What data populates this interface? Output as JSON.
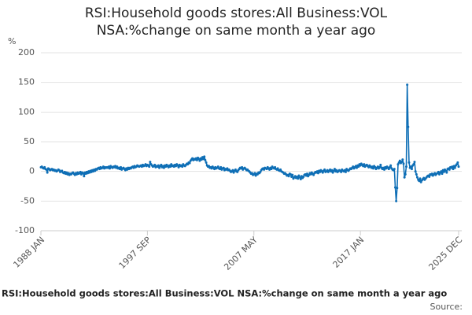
{
  "chart_data": {
    "type": "line",
    "title": "RSI:Household goods stores:All Business:VOL NSA:%change on same month a year ago",
    "y_label": "%",
    "footer": "RSI:Household goods stores:All Business:VOL NSA:%change on same month a year ago",
    "source": "Source:",
    "ylim": [
      -100,
      200
    ],
    "yticks": [
      -100,
      -50,
      0,
      50,
      100,
      150,
      200
    ],
    "grid": true,
    "categories": [
      "1988 JAN",
      null,
      null,
      null,
      null,
      null,
      null,
      null,
      null,
      null,
      null,
      null,
      null,
      null,
      null,
      null,
      null,
      null,
      null,
      null,
      null,
      null,
      null,
      null,
      null,
      null,
      null,
      null,
      null,
      null,
      null,
      null,
      null,
      null,
      null,
      null,
      null,
      null,
      null,
      null,
      null,
      null,
      null,
      null,
      null,
      null,
      null,
      null,
      null,
      null,
      null,
      null,
      null,
      null,
      null,
      null,
      null,
      null,
      null,
      null,
      null,
      null,
      null,
      null,
      null,
      null,
      null,
      null,
      null,
      null,
      null,
      null,
      null,
      null,
      null,
      null,
      null,
      null,
      null,
      null,
      null,
      null,
      null,
      null,
      null,
      null,
      null,
      null,
      null,
      null,
      null,
      null,
      null,
      null,
      null,
      null,
      null,
      null,
      null,
      null,
      null,
      null,
      null,
      null,
      null,
      null,
      null,
      null,
      null,
      null,
      null,
      null,
      null,
      null,
      null,
      null,
      "1997 SEP",
      null,
      null,
      null,
      null,
      null,
      null,
      null,
      null,
      null,
      null,
      null,
      null,
      null,
      null,
      null,
      null,
      null,
      null,
      null,
      null,
      null,
      null,
      null,
      null,
      null,
      null,
      null,
      null,
      null,
      null,
      null,
      null,
      null,
      null,
      null,
      null,
      null,
      null,
      null,
      null,
      null,
      null,
      null,
      null,
      null,
      null,
      null,
      null,
      null,
      null,
      null,
      null,
      null,
      null,
      null,
      null,
      null,
      null,
      null,
      null,
      null,
      null,
      null,
      null,
      null,
      null,
      null,
      null,
      null,
      null,
      null,
      null,
      null,
      null,
      null,
      null,
      null,
      null,
      null,
      null,
      null,
      null,
      null,
      null,
      null,
      null,
      null,
      null,
      null,
      null,
      null,
      null,
      null,
      null,
      null,
      null,
      null,
      null,
      null,
      null,
      null,
      null,
      null,
      null,
      null,
      null,
      null,
      null,
      null,
      null,
      null,
      null,
      null,
      null,
      null,
      "2007 MAY",
      null,
      null,
      null,
      null,
      null,
      null,
      null,
      null,
      null,
      null,
      null,
      null,
      null,
      null,
      null,
      null,
      null,
      null,
      null,
      null,
      null,
      null,
      null,
      null,
      null,
      null,
      null,
      null,
      null,
      null,
      null,
      null,
      null,
      null,
      null,
      null,
      null,
      null,
      null,
      null,
      null,
      null,
      null,
      null,
      null,
      null,
      null,
      null,
      null,
      null,
      null,
      null,
      null,
      null,
      null,
      null,
      null,
      null,
      null,
      null,
      null,
      null,
      null,
      null,
      null,
      null,
      null,
      null,
      null,
      null,
      null,
      null,
      null,
      null,
      null,
      null,
      null,
      null,
      null,
      null,
      null,
      null,
      null,
      null,
      null,
      null,
      null,
      null,
      null,
      null,
      null,
      null,
      null,
      null,
      null,
      null,
      null,
      null,
      null,
      null,
      null,
      null,
      null,
      null,
      null,
      null,
      null,
      null,
      null,
      null,
      null,
      null,
      null,
      null,
      null,
      "2017 JAN",
      null,
      null,
      null,
      null,
      null,
      null,
      null,
      null,
      null,
      null,
      null,
      null,
      null,
      null,
      null,
      null,
      null,
      null,
      null,
      null,
      null,
      null,
      null,
      null,
      null,
      null,
      null,
      null,
      null,
      null,
      null,
      null,
      null,
      null,
      null,
      null,
      null,
      null,
      null,
      null,
      null,
      null,
      null,
      null,
      null,
      null,
      null,
      null,
      null,
      null,
      null,
      null,
      null,
      null,
      null,
      null,
      null,
      null,
      null,
      null,
      null,
      null,
      null,
      null,
      null,
      null,
      null,
      null,
      null,
      null,
      null,
      null,
      null,
      null,
      null,
      null,
      null,
      null,
      null,
      null,
      null,
      null,
      null,
      null,
      null,
      null,
      null,
      null,
      null,
      null,
      null,
      null,
      null,
      null,
      null,
      null,
      null,
      null,
      null,
      null,
      null,
      null,
      null,
      null,
      null,
      null,
      "2025 DEC"
    ],
    "series": [
      {
        "name": "RSI:Household goods stores:All Business:VOL NSA:%change on same month a year ago",
        "color": "#0f6fb6",
        "values": [
          7,
          8,
          6,
          5,
          7,
          4,
          3,
          -2,
          5,
          4,
          2,
          3,
          4,
          2,
          3,
          1,
          2,
          0,
          1,
          3,
          2,
          -1,
          0,
          1,
          -2,
          -3,
          -1,
          -4,
          -2,
          -5,
          -3,
          -6,
          -4,
          -5,
          -3,
          -2,
          -4,
          -6,
          -3,
          -5,
          -2,
          -4,
          -3,
          -1,
          -5,
          -2,
          -3,
          -8,
          -2,
          -4,
          -1,
          -3,
          0,
          -2,
          1,
          -1,
          2,
          0,
          3,
          1,
          4,
          3,
          5,
          6,
          4,
          7,
          5,
          6,
          8,
          5,
          7,
          6,
          7,
          6,
          8,
          5,
          9,
          7,
          6,
          8,
          7,
          9,
          6,
          8,
          5,
          6,
          4,
          7,
          3,
          5,
          6,
          4,
          2,
          5,
          3,
          6,
          4,
          6,
          5,
          7,
          8,
          6,
          9,
          7,
          8,
          10,
          9,
          8,
          9,
          10,
          8,
          11,
          9,
          10,
          12,
          9,
          11,
          10,
          8,
          16,
          12,
          10,
          8,
          9,
          11,
          7,
          9,
          8,
          10,
          6,
          9,
          11,
          7,
          9,
          6,
          10,
          8,
          11,
          9,
          7,
          10,
          8,
          12,
          9,
          10,
          8,
          11,
          9,
          12,
          10,
          7,
          11,
          9,
          10,
          8,
          12,
          10,
          9,
          11,
          13,
          12,
          15,
          14,
          18,
          20,
          22,
          19,
          21,
          20,
          22,
          19,
          23,
          21,
          18,
          22,
          20,
          24,
          21,
          25,
          19,
          15,
          10,
          8,
          9,
          6,
          7,
          5,
          8,
          6,
          4,
          7,
          5,
          6,
          8,
          5,
          4,
          7,
          3,
          5,
          6,
          2,
          4,
          3,
          5,
          2,
          3,
          1,
          -1,
          0,
          2,
          -2,
          1,
          3,
          0,
          -1,
          2,
          4,
          6,
          5,
          7,
          3,
          5,
          6,
          4,
          2,
          3,
          1,
          0,
          -2,
          -4,
          -3,
          -6,
          -5,
          -3,
          -7,
          -4,
          -5,
          -2,
          -3,
          -1,
          2,
          4,
          5,
          3,
          6,
          5,
          4,
          7,
          5,
          3,
          6,
          4,
          8,
          6,
          5,
          7,
          4,
          3,
          5,
          2,
          1,
          3,
          0,
          -1,
          -2,
          -4,
          -3,
          -5,
          -7,
          -6,
          -8,
          -4,
          -5,
          -9,
          -6,
          -12,
          -10,
          -8,
          -11,
          -9,
          -12,
          -7,
          -10,
          -13,
          -8,
          -11,
          -9,
          -6,
          -5,
          -7,
          -4,
          -8,
          -6,
          -3,
          -5,
          -2,
          -4,
          -6,
          -3,
          -1,
          -2,
          0,
          -3,
          1,
          -1,
          2,
          0,
          -2,
          1,
          3,
          -1,
          0,
          2,
          -1,
          1,
          3,
          0,
          2,
          -2,
          1,
          4,
          0,
          2,
          -1,
          0,
          2,
          1,
          -1,
          3,
          1,
          0,
          2,
          -1,
          4,
          2,
          1,
          3,
          5,
          4,
          6,
          8,
          5,
          7,
          9,
          6,
          10,
          8,
          12,
          10,
          13,
          11,
          9,
          12,
          8,
          10,
          11,
          9,
          7,
          10,
          8,
          6,
          8,
          5,
          9,
          7,
          4,
          6,
          8,
          5,
          7,
          11,
          6,
          4,
          6,
          3,
          7,
          5,
          8,
          6,
          4,
          7,
          10,
          5,
          3,
          2,
          4,
          -27,
          -50,
          -28,
          12,
          15,
          18,
          14,
          16,
          20,
          13,
          -10,
          -5,
          8,
          146,
          75,
          15,
          6,
          8,
          4,
          10,
          12,
          16,
          0,
          -5,
          -10,
          -14,
          -16,
          -12,
          -18,
          -15,
          -13,
          -11,
          -14,
          -12,
          -10,
          -8,
          -7,
          -9,
          -5,
          -6,
          -4,
          -7,
          -5,
          -3,
          -6,
          -4,
          -3,
          -1,
          -5,
          -2,
          0,
          -4,
          2,
          -1,
          3,
          1,
          -2,
          4,
          5,
          3,
          7,
          6,
          8,
          4,
          9,
          6,
          10,
          12,
          15,
          8
        ]
      }
    ]
  }
}
